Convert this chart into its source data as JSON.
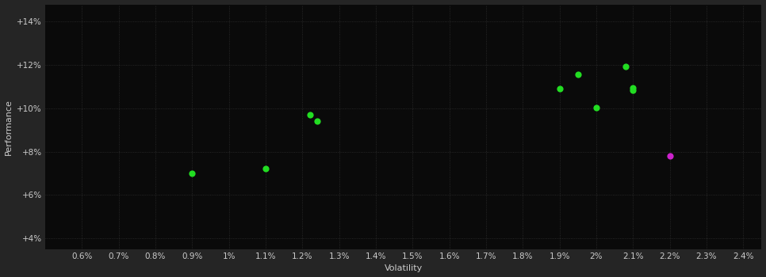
{
  "background_color": "#252525",
  "plot_bg_color": "#0a0a0a",
  "text_color": "#cccccc",
  "xlabel": "Volatility",
  "ylabel": "Performance",
  "xlim_min": 0.005,
  "xlim_max": 0.0245,
  "ylim_min": 0.035,
  "ylim_max": 0.148,
  "xticks": [
    0.006,
    0.007,
    0.008,
    0.009,
    0.01,
    0.011,
    0.012,
    0.013,
    0.014,
    0.015,
    0.016,
    0.017,
    0.018,
    0.019,
    0.02,
    0.021,
    0.022,
    0.023,
    0.024
  ],
  "yticks": [
    0.04,
    0.06,
    0.08,
    0.1,
    0.12,
    0.14
  ],
  "green_x": [
    0.009,
    0.011,
    0.0122,
    0.0124,
    0.019,
    0.0195,
    0.02,
    0.0208,
    0.021,
    0.021
  ],
  "green_y": [
    0.07,
    0.072,
    0.097,
    0.094,
    0.109,
    0.1155,
    0.1005,
    0.1195,
    0.1095,
    0.1085
  ],
  "magenta_x": [
    0.022
  ],
  "magenta_y": [
    0.078
  ],
  "green_color": "#22dd22",
  "magenta_color": "#cc22cc",
  "marker_size": 35,
  "axis_fontsize": 8,
  "tick_fontsize": 7.5,
  "grid_color": "#555555",
  "grid_alpha": 0.5
}
